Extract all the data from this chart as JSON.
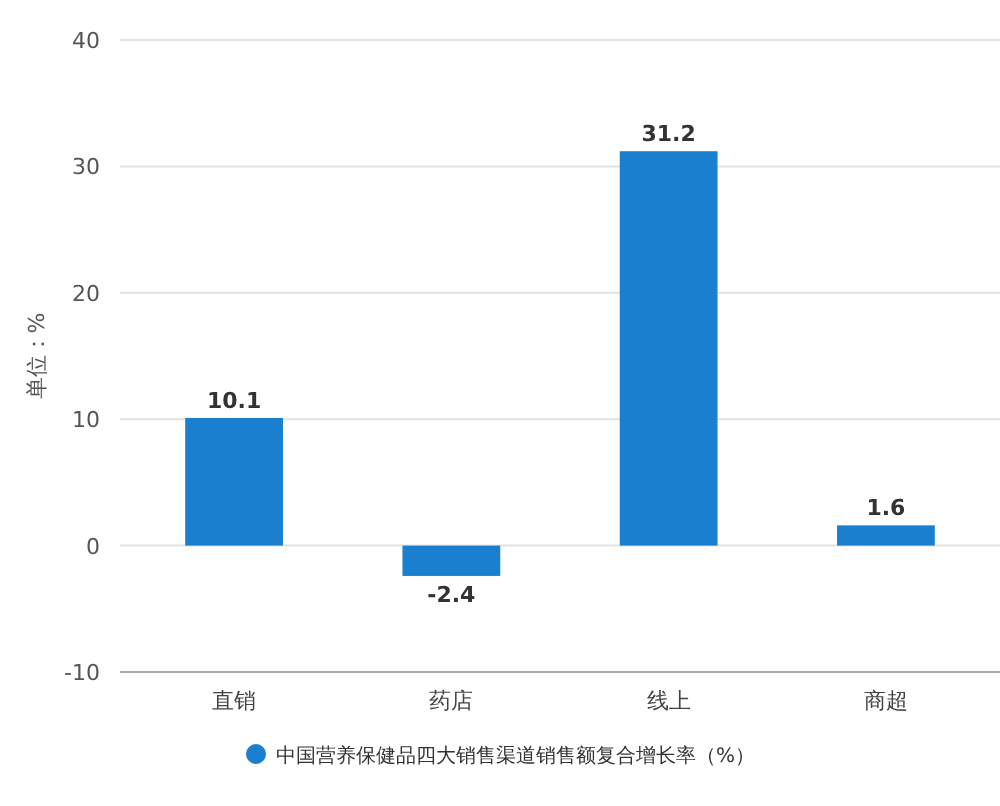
{
  "chart_data": {
    "type": "bar",
    "ylabel": "单位：%",
    "categories": [
      "直销",
      "药店",
      "线上",
      "商超"
    ],
    "series": [
      {
        "name": "中国营养保健品四大销售渠道销售额复合增长率（%）",
        "color": "#1a7fcf",
        "values": [
          10.1,
          -2.4,
          31.2,
          1.6
        ]
      }
    ],
    "ylim": [
      -10,
      40
    ],
    "yticks": [
      -10,
      0,
      10,
      20,
      30,
      40
    ],
    "grid": "y",
    "legend": "bottom",
    "data_labels": true
  }
}
